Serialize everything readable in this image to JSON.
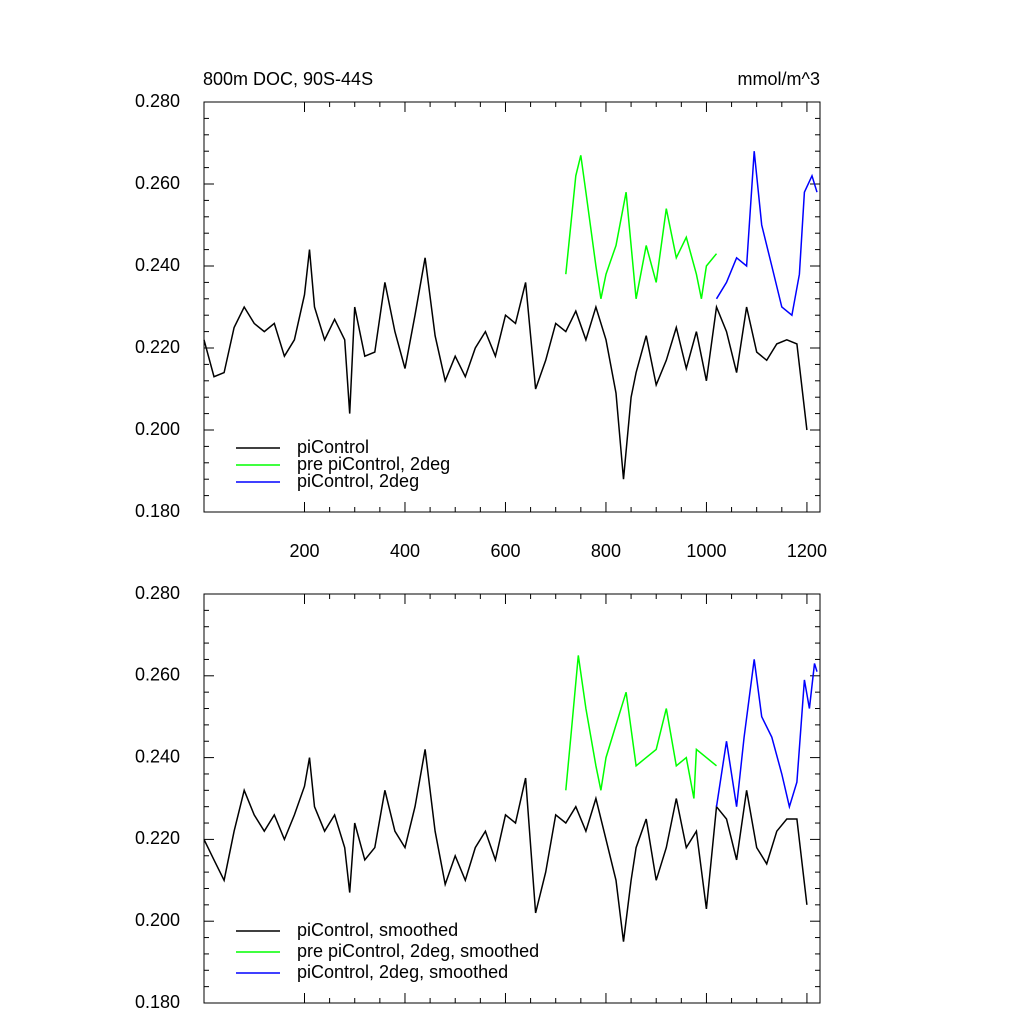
{
  "chart_data": [
    {
      "type": "line",
      "title": "800m DOC, 90S-44S",
      "units": "mmol/m^3",
      "xlim": [
        0,
        1226
      ],
      "xticks": [
        200,
        400,
        600,
        800,
        1000,
        1200
      ],
      "ylim": [
        0.18,
        0.28
      ],
      "yticks": [
        {
          "value": 0.18,
          "label": "0.180"
        },
        {
          "value": 0.2,
          "label": "0.200"
        },
        {
          "value": 0.22,
          "label": "0.220"
        },
        {
          "value": 0.24,
          "label": "0.240"
        },
        {
          "value": 0.26,
          "label": "0.260"
        },
        {
          "value": 0.28,
          "label": "0.280"
        }
      ],
      "legend": "lower left",
      "series": [
        {
          "name": "piControl",
          "color": "#000000",
          "x": [
            0,
            20,
            40,
            60,
            80,
            100,
            120,
            140,
            160,
            180,
            200,
            210,
            220,
            240,
            260,
            280,
            290,
            300,
            320,
            340,
            360,
            380,
            400,
            420,
            440,
            460,
            480,
            500,
            520,
            540,
            560,
            580,
            600,
            620,
            640,
            660,
            680,
            700,
            720,
            740,
            760,
            780,
            800,
            820,
            835,
            850,
            860,
            880,
            900,
            920,
            940,
            960,
            980,
            1000,
            1020,
            1040,
            1060,
            1080,
            1100,
            1120,
            1140,
            1160,
            1180,
            1200
          ],
          "values": [
            0.222,
            0.213,
            0.214,
            0.225,
            0.23,
            0.226,
            0.224,
            0.226,
            0.218,
            0.222,
            0.233,
            0.244,
            0.23,
            0.222,
            0.227,
            0.222,
            0.204,
            0.23,
            0.218,
            0.219,
            0.236,
            0.224,
            0.215,
            0.228,
            0.242,
            0.223,
            0.212,
            0.218,
            0.213,
            0.22,
            0.224,
            0.218,
            0.228,
            0.226,
            0.236,
            0.21,
            0.217,
            0.226,
            0.224,
            0.229,
            0.222,
            0.23,
            0.222,
            0.209,
            0.188,
            0.208,
            0.214,
            0.223,
            0.211,
            0.217,
            0.225,
            0.215,
            0.224,
            0.212,
            0.23,
            0.224,
            0.214,
            0.23,
            0.219,
            0.217,
            0.221,
            0.222,
            0.221,
            0.2
          ]
        },
        {
          "name": "pre piControl, 2deg",
          "color": "#00ff00",
          "x": [
            720,
            730,
            740,
            750,
            760,
            780,
            790,
            800,
            820,
            840,
            850,
            860,
            880,
            900,
            920,
            940,
            960,
            980,
            990,
            1000,
            1020
          ],
          "values": [
            0.238,
            0.25,
            0.262,
            0.267,
            0.258,
            0.24,
            0.232,
            0.238,
            0.245,
            0.258,
            0.245,
            0.232,
            0.245,
            0.236,
            0.254,
            0.242,
            0.247,
            0.238,
            0.232,
            0.24,
            0.243
          ]
        },
        {
          "name": "piControl, 2deg",
          "color": "#0000ff",
          "x": [
            1020,
            1040,
            1060,
            1080,
            1095,
            1110,
            1130,
            1150,
            1170,
            1185,
            1195,
            1210,
            1220
          ],
          "values": [
            0.232,
            0.236,
            0.242,
            0.24,
            0.268,
            0.25,
            0.24,
            0.23,
            0.228,
            0.238,
            0.258,
            0.262,
            0.258
          ]
        }
      ]
    },
    {
      "type": "line",
      "xlim": [
        0,
        1226
      ],
      "xticks": [
        200,
        400,
        600,
        800,
        1000,
        1200
      ],
      "ylim": [
        0.18,
        0.28
      ],
      "yticks": [
        {
          "value": 0.18,
          "label": "0.180"
        },
        {
          "value": 0.2,
          "label": "0.200"
        },
        {
          "value": 0.22,
          "label": "0.220"
        },
        {
          "value": 0.24,
          "label": "0.240"
        },
        {
          "value": 0.26,
          "label": "0.260"
        },
        {
          "value": 0.28,
          "label": "0.280"
        }
      ],
      "legend": "lower left",
      "series": [
        {
          "name": "piControl, smoothed",
          "color": "#000000",
          "x": [
            0,
            20,
            40,
            60,
            80,
            100,
            120,
            140,
            160,
            180,
            200,
            210,
            220,
            240,
            260,
            280,
            290,
            300,
            320,
            340,
            360,
            380,
            400,
            420,
            440,
            460,
            480,
            500,
            520,
            540,
            560,
            580,
            600,
            620,
            640,
            660,
            680,
            700,
            720,
            740,
            760,
            780,
            800,
            820,
            835,
            850,
            860,
            880,
            900,
            920,
            940,
            960,
            980,
            1000,
            1020,
            1040,
            1060,
            1080,
            1100,
            1120,
            1140,
            1160,
            1180,
            1200
          ],
          "values": [
            0.22,
            0.215,
            0.21,
            0.222,
            0.232,
            0.226,
            0.222,
            0.226,
            0.22,
            0.226,
            0.233,
            0.24,
            0.228,
            0.222,
            0.226,
            0.218,
            0.207,
            0.224,
            0.215,
            0.218,
            0.232,
            0.222,
            0.218,
            0.228,
            0.242,
            0.222,
            0.209,
            0.216,
            0.21,
            0.218,
            0.222,
            0.215,
            0.226,
            0.224,
            0.235,
            0.202,
            0.212,
            0.226,
            0.224,
            0.228,
            0.222,
            0.23,
            0.22,
            0.21,
            0.195,
            0.21,
            0.218,
            0.225,
            0.21,
            0.218,
            0.23,
            0.218,
            0.222,
            0.203,
            0.228,
            0.225,
            0.215,
            0.232,
            0.218,
            0.214,
            0.222,
            0.225,
            0.225,
            0.204
          ]
        },
        {
          "name": "pre piControl, 2deg, smoothed",
          "color": "#00ff00",
          "x": [
            720,
            730,
            745,
            760,
            780,
            790,
            800,
            820,
            840,
            860,
            880,
            900,
            920,
            940,
            960,
            975,
            980,
            1000,
            1020
          ],
          "values": [
            0.232,
            0.245,
            0.265,
            0.252,
            0.238,
            0.232,
            0.24,
            0.248,
            0.256,
            0.238,
            0.24,
            0.242,
            0.252,
            0.238,
            0.24,
            0.23,
            0.242,
            0.24,
            0.238
          ]
        },
        {
          "name": "piControl, 2deg, smoothed",
          "color": "#0000ff",
          "x": [
            1020,
            1040,
            1060,
            1075,
            1095,
            1110,
            1130,
            1150,
            1165,
            1180,
            1195,
            1205,
            1215,
            1220
          ],
          "values": [
            0.228,
            0.244,
            0.228,
            0.245,
            0.264,
            0.25,
            0.245,
            0.236,
            0.228,
            0.234,
            0.259,
            0.252,
            0.263,
            0.261
          ]
        }
      ]
    }
  ]
}
